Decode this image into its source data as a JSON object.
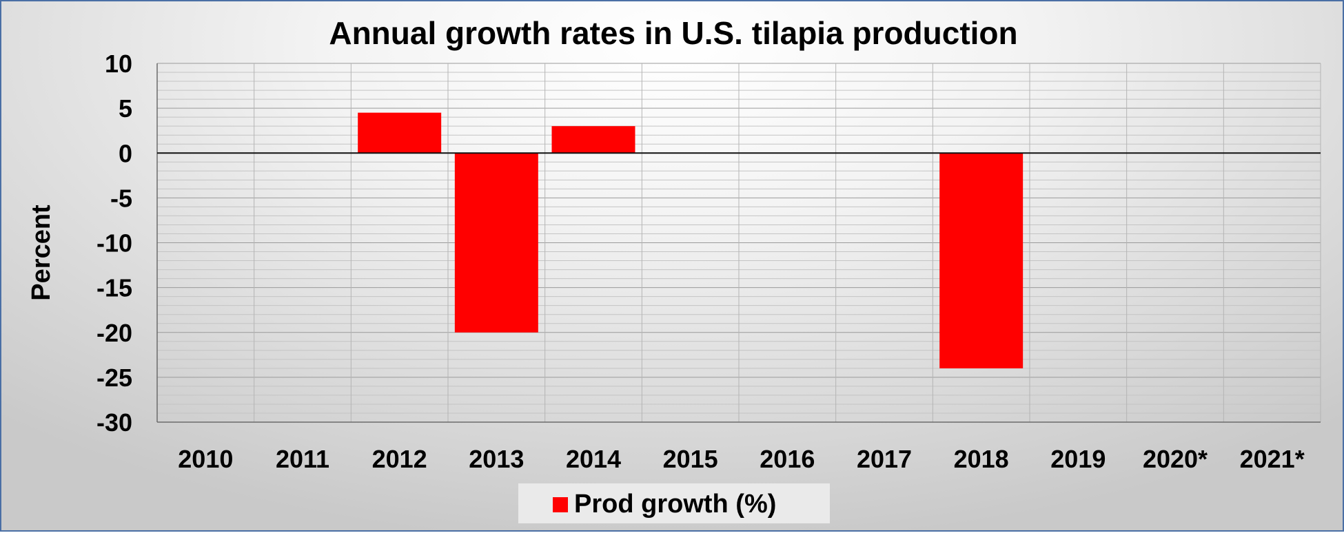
{
  "chart_data": {
    "type": "bar",
    "title": "Annual growth rates in U.S. tilapia production",
    "xlabel": "",
    "ylabel": "Percent",
    "categories": [
      "2010",
      "2011",
      "2012",
      "2013",
      "2014",
      "2015",
      "2016",
      "2017",
      "2018",
      "2019",
      "2020*",
      "2021*"
    ],
    "series": [
      {
        "name": "Prod growth (%)",
        "color": "#ff0000",
        "values": [
          null,
          null,
          4.5,
          -20,
          3,
          null,
          null,
          null,
          -24,
          null,
          null,
          null
        ]
      }
    ],
    "ylim": [
      -30,
      10
    ],
    "yticks": [
      "10",
      "5",
      "0",
      "-5",
      "-10",
      "-15",
      "-20",
      "-25",
      "-30"
    ],
    "grid": true,
    "legend": "bottom"
  }
}
